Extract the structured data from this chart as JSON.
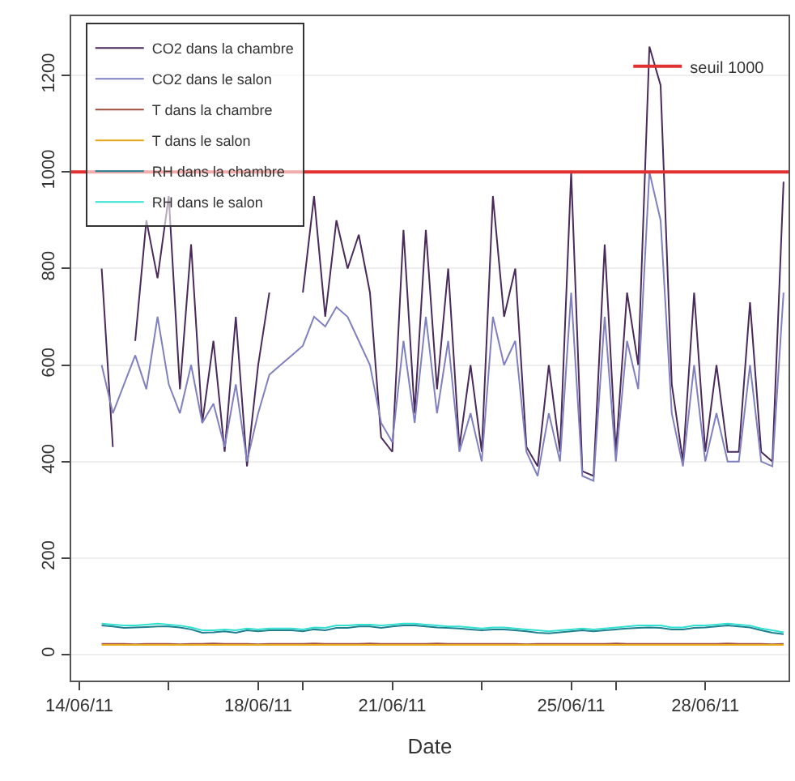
{
  "chart_data": {
    "type": "line",
    "xlabel": "Date",
    "x": [
      "--06-14T12:00",
      "--06-14T18:00",
      "--06-15T00:00",
      "--06-15T06:00",
      "--06-15T12:00",
      "--06-15T18:00",
      "--06-16T00:00",
      "--06-16T06:00",
      "--06-16T12:00",
      "--06-16T18:00",
      "--06-17T00:00",
      "--06-17T06:00",
      "--06-17T12:00",
      "--06-17T18:00",
      "--06-18T00:00",
      "--06-18T06:00",
      "--06-18T12:00",
      "--06-18T18:00",
      "--06-19T00:00",
      "--06-19T06:00",
      "--06-19T12:00",
      "--06-19T18:00",
      "--06-20T00:00",
      "--06-20T06:00",
      "--06-20T12:00",
      "--06-20T18:00",
      "--06-21T00:00",
      "--06-21T06:00",
      "--06-21T12:00",
      "--06-21T18:00",
      "--06-22T00:00",
      "--06-22T06:00",
      "--06-22T12:00",
      "--06-22T18:00",
      "--06-23T00:00",
      "--06-23T06:00",
      "--06-23T12:00",
      "--06-23T18:00",
      "--06-24T00:00",
      "--06-24T06:00",
      "--06-24T12:00",
      "--06-24T18:00",
      "--06-25T00:00",
      "--06-25T06:00",
      "--06-25T12:00",
      "--06-25T18:00",
      "--06-26T00:00",
      "--06-26T06:00",
      "--06-26T12:00",
      "--06-26T18:00",
      "--06-27T00:00",
      "--06-27T06:00",
      "--06-27T12:00",
      "--06-27T18:00",
      "--06-28T00:00",
      "--06-28T06:00",
      "--06-28T12:00",
      "--06-28T18:00",
      "--06-29T00:00",
      "--06-29T06:00",
      "--06-29T12:00",
      "--06-29T18:00"
    ],
    "series": [
      {
        "name": "CO2 dans la chambre",
        "color": "#4a2a5a",
        "values": [
          800,
          430,
          null,
          650,
          900,
          780,
          950,
          550,
          850,
          480,
          650,
          420,
          700,
          390,
          600,
          750,
          null,
          null,
          750,
          950,
          700,
          900,
          800,
          870,
          750,
          450,
          420,
          880,
          500,
          880,
          550,
          800,
          430,
          600,
          420,
          950,
          700,
          800,
          430,
          390,
          600,
          420,
          1000,
          380,
          370,
          850,
          420,
          750,
          600,
          1260,
          1180,
          560,
          400,
          750,
          420,
          600,
          420,
          420,
          730,
          420,
          400,
          980
        ]
      },
      {
        "name": "CO2 dans le salon",
        "color": "#8080c0",
        "values": [
          600,
          500,
          560,
          620,
          550,
          700,
          560,
          500,
          600,
          480,
          520,
          430,
          560,
          400,
          500,
          580,
          600,
          620,
          640,
          700,
          680,
          720,
          700,
          650,
          600,
          480,
          440,
          650,
          480,
          700,
          500,
          650,
          420,
          500,
          400,
          700,
          600,
          650,
          420,
          370,
          500,
          400,
          750,
          370,
          360,
          700,
          400,
          650,
          550,
          1000,
          900,
          500,
          390,
          600,
          400,
          500,
          400,
          400,
          600,
          400,
          390,
          750
        ]
      },
      {
        "name": "T dans la chambre",
        "color": "#9c4f3f",
        "values": [
          22,
          22,
          22,
          21,
          22,
          22,
          22,
          21,
          22,
          22,
          23,
          22,
          22,
          22,
          21,
          22,
          22,
          22,
          22,
          23,
          22,
          22,
          22,
          22,
          23,
          22,
          22,
          22,
          22,
          22,
          23,
          22,
          22,
          22,
          22,
          22,
          22,
          22,
          21,
          22,
          22,
          22,
          22,
          22,
          22,
          22,
          23,
          22,
          22,
          22,
          22,
          22,
          22,
          22,
          22,
          22,
          23,
          22,
          22,
          22,
          21,
          22
        ]
      },
      {
        "name": "T dans le salon",
        "color": "#e8a820",
        "values": [
          20,
          20,
          20,
          20,
          20,
          20,
          20,
          20,
          20,
          20,
          20,
          20,
          20,
          20,
          20,
          20,
          20,
          20,
          20,
          20,
          20,
          20,
          20,
          20,
          20,
          20,
          20,
          20,
          20,
          20,
          20,
          20,
          20,
          20,
          20,
          20,
          20,
          20,
          20,
          20,
          20,
          20,
          20,
          20,
          20,
          20,
          20,
          20,
          20,
          20,
          20,
          20,
          20,
          20,
          20,
          20,
          20,
          20,
          20,
          20,
          20,
          20
        ]
      },
      {
        "name": "RH dans la chambre",
        "color": "#1f7f8f",
        "values": [
          60,
          58,
          55,
          56,
          57,
          58,
          58,
          56,
          52,
          45,
          46,
          48,
          45,
          50,
          48,
          50,
          50,
          50,
          48,
          52,
          50,
          55,
          55,
          58,
          58,
          55,
          58,
          60,
          60,
          58,
          56,
          55,
          54,
          52,
          50,
          52,
          52,
          50,
          48,
          45,
          44,
          46,
          48,
          50,
          48,
          50,
          52,
          54,
          55,
          56,
          55,
          52,
          52,
          55,
          56,
          58,
          60,
          58,
          56,
          50,
          45,
          42
        ]
      },
      {
        "name": "RH dans le salon",
        "color": "#30e0d0",
        "values": [
          64,
          62,
          60,
          60,
          62,
          64,
          62,
          60,
          56,
          50,
          50,
          52,
          50,
          54,
          52,
          54,
          54,
          54,
          52,
          56,
          55,
          60,
          60,
          62,
          62,
          60,
          62,
          64,
          64,
          62,
          60,
          58,
          58,
          56,
          54,
          56,
          56,
          54,
          52,
          50,
          48,
          50,
          52,
          54,
          52,
          54,
          56,
          58,
          60,
          60,
          60,
          56,
          56,
          60,
          60,
          62,
          64,
          62,
          60,
          54,
          50,
          46
        ]
      }
    ],
    "ylim": [
      -54,
      1323
    ],
    "yticks": [
      0,
      200,
      400,
      600,
      800,
      1000,
      1200
    ],
    "xlim": [
      "--06-13T19:40",
      "--06-29T20:40"
    ],
    "xticks": [
      {
        "value": "--06-14",
        "label": "14/06/11"
      },
      {
        "value": "--06-16",
        "label": null
      },
      {
        "value": "--06-18",
        "label": "18/06/11"
      },
      {
        "value": "--06-19",
        "label": null
      },
      {
        "value": "--06-21",
        "label": "21/06/11"
      },
      {
        "value": "--06-23",
        "label": null
      },
      {
        "value": "--06-25",
        "label": "25/06/11"
      },
      {
        "value": "--06-26",
        "label": null
      },
      {
        "value": "--06-28",
        "label": "28/06/11"
      }
    ],
    "ref_lines": [
      {
        "axis": "y",
        "value": 1000,
        "label": "seuil 1000",
        "color": "#e03030"
      }
    ],
    "grid": "y",
    "legend": "top left",
    "line_style": "solid",
    "marker": "none"
  }
}
